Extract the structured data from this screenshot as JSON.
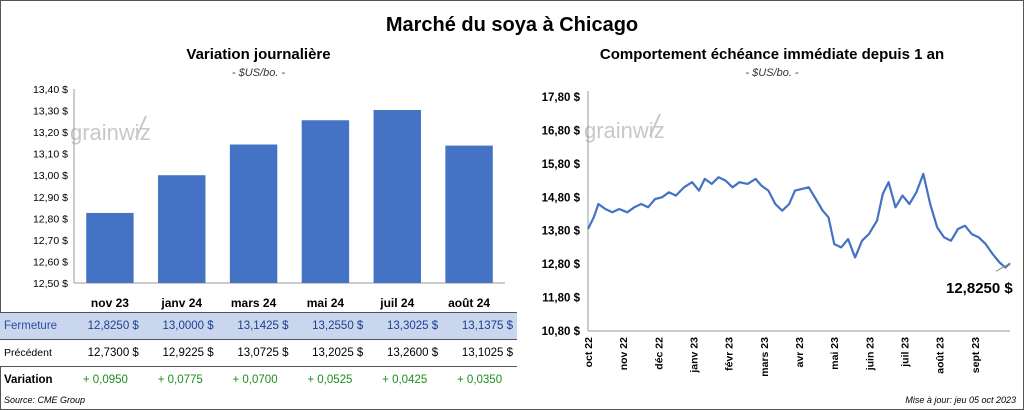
{
  "main_title": "Marché du soya à Chicago",
  "left_panel": {
    "title": "Variation journalière",
    "unit": "- $US/bo. -"
  },
  "right_panel": {
    "title": "Comportement échéance immédiate depuis 1 an",
    "unit": "- $US/bo. -",
    "last_value_label": "12,8250 $"
  },
  "logo_text": "grainwiz",
  "table": {
    "rows": [
      {
        "label": "Fermeture",
        "values": [
          "12,8250 $",
          "13,0000 $",
          "13,1425 $",
          "13,2550 $",
          "13,3025 $",
          "13,1375 $"
        ]
      },
      {
        "label": "Précédent",
        "values": [
          "12,7300 $",
          "12,9225 $",
          "13,0725 $",
          "13,2025 $",
          "13,2600 $",
          "13,1025 $"
        ]
      },
      {
        "label": "Variation",
        "values": [
          "+ 0,0950",
          "+ 0,0775",
          "+ 0,0700",
          "+ 0,0525",
          "+ 0,0425",
          "+ 0,0350"
        ]
      }
    ]
  },
  "footer": {
    "source": "Source: CME Group",
    "updated": "Mise à jour: jeu 05 oct 2023"
  },
  "colors": {
    "bar": "#4472c4",
    "line": "#4472c4",
    "close_row": "#c9d6ee",
    "positive": "#1e8c1e"
  },
  "chart_data": [
    {
      "type": "bar",
      "title": "Variation journalière",
      "categories": [
        "nov 23",
        "janv 24",
        "mars 24",
        "mai 24",
        "juil 24",
        "août 24"
      ],
      "values": [
        12.825,
        13.0,
        13.1425,
        13.255,
        13.3025,
        13.1375
      ],
      "ylim": [
        12.5,
        13.4
      ],
      "yticks": [
        "12,50 $",
        "12,60 $",
        "12,70 $",
        "12,80 $",
        "12,90 $",
        "13,00 $",
        "13,10 $",
        "13,20 $",
        "13,30 $",
        "13,40 $"
      ],
      "grid": false
    },
    {
      "type": "line",
      "title": "Comportement échéance immédiate depuis 1 an",
      "ylim": [
        10.8,
        17.8
      ],
      "yticks": [
        "10,80 $",
        "11,80 $",
        "12,80 $",
        "13,80 $",
        "14,80 $",
        "15,80 $",
        "16,80 $",
        "17,80 $"
      ],
      "xticks": [
        "oct 22",
        "nov 22",
        "déc 22",
        "janv 23",
        "févr 23",
        "mars 23",
        "avr 23",
        "mai 23",
        "juin 23",
        "juil 23",
        "août 23",
        "sept 23"
      ],
      "x_start": "2022-10-05",
      "x_end": "2023-10-05",
      "series": [
        {
          "points": [
            [
              "2022-10-05",
              13.85
            ],
            [
              "2022-10-10",
              14.2
            ],
            [
              "2022-10-14",
              14.6
            ],
            [
              "2022-10-20",
              14.45
            ],
            [
              "2022-10-26",
              14.35
            ],
            [
              "2022-11-01",
              14.45
            ],
            [
              "2022-11-08",
              14.35
            ],
            [
              "2022-11-14",
              14.5
            ],
            [
              "2022-11-20",
              14.6
            ],
            [
              "2022-11-26",
              14.5
            ],
            [
              "2022-12-02",
              14.75
            ],
            [
              "2022-12-08",
              14.8
            ],
            [
              "2022-12-14",
              14.95
            ],
            [
              "2022-12-20",
              14.85
            ],
            [
              "2022-12-27",
              15.1
            ],
            [
              "2023-01-03",
              15.25
            ],
            [
              "2023-01-09",
              15.0
            ],
            [
              "2023-01-14",
              15.35
            ],
            [
              "2023-01-20",
              15.2
            ],
            [
              "2023-01-26",
              15.4
            ],
            [
              "2023-02-01",
              15.3
            ],
            [
              "2023-02-07",
              15.1
            ],
            [
              "2023-02-13",
              15.25
            ],
            [
              "2023-02-20",
              15.2
            ],
            [
              "2023-02-27",
              15.35
            ],
            [
              "2023-03-04",
              15.15
            ],
            [
              "2023-03-10",
              15.0
            ],
            [
              "2023-03-16",
              14.6
            ],
            [
              "2023-03-22",
              14.4
            ],
            [
              "2023-03-28",
              14.6
            ],
            [
              "2023-04-02",
              15.0
            ],
            [
              "2023-04-08",
              15.05
            ],
            [
              "2023-04-14",
              15.1
            ],
            [
              "2023-04-20",
              14.75
            ],
            [
              "2023-04-26",
              14.4
            ],
            [
              "2023-05-01",
              14.2
            ],
            [
              "2023-05-06",
              13.4
            ],
            [
              "2023-05-12",
              13.3
            ],
            [
              "2023-05-18",
              13.55
            ],
            [
              "2023-05-24",
              13.0
            ],
            [
              "2023-05-30",
              13.5
            ],
            [
              "2023-06-05",
              13.7
            ],
            [
              "2023-06-12",
              14.1
            ],
            [
              "2023-06-17",
              14.9
            ],
            [
              "2023-06-22",
              15.25
            ],
            [
              "2023-06-28",
              14.5
            ],
            [
              "2023-07-04",
              14.85
            ],
            [
              "2023-07-10",
              14.6
            ],
            [
              "2023-07-16",
              14.95
            ],
            [
              "2023-07-22",
              15.5
            ],
            [
              "2023-07-28",
              14.6
            ],
            [
              "2023-08-03",
              13.9
            ],
            [
              "2023-08-09",
              13.6
            ],
            [
              "2023-08-15",
              13.5
            ],
            [
              "2023-08-21",
              13.85
            ],
            [
              "2023-08-27",
              13.95
            ],
            [
              "2023-09-02",
              13.7
            ],
            [
              "2023-09-08",
              13.6
            ],
            [
              "2023-09-14",
              13.4
            ],
            [
              "2023-09-20",
              13.1
            ],
            [
              "2023-09-26",
              12.85
            ],
            [
              "2023-10-01",
              12.7
            ],
            [
              "2023-10-05",
              12.825
            ]
          ]
        }
      ]
    }
  ]
}
